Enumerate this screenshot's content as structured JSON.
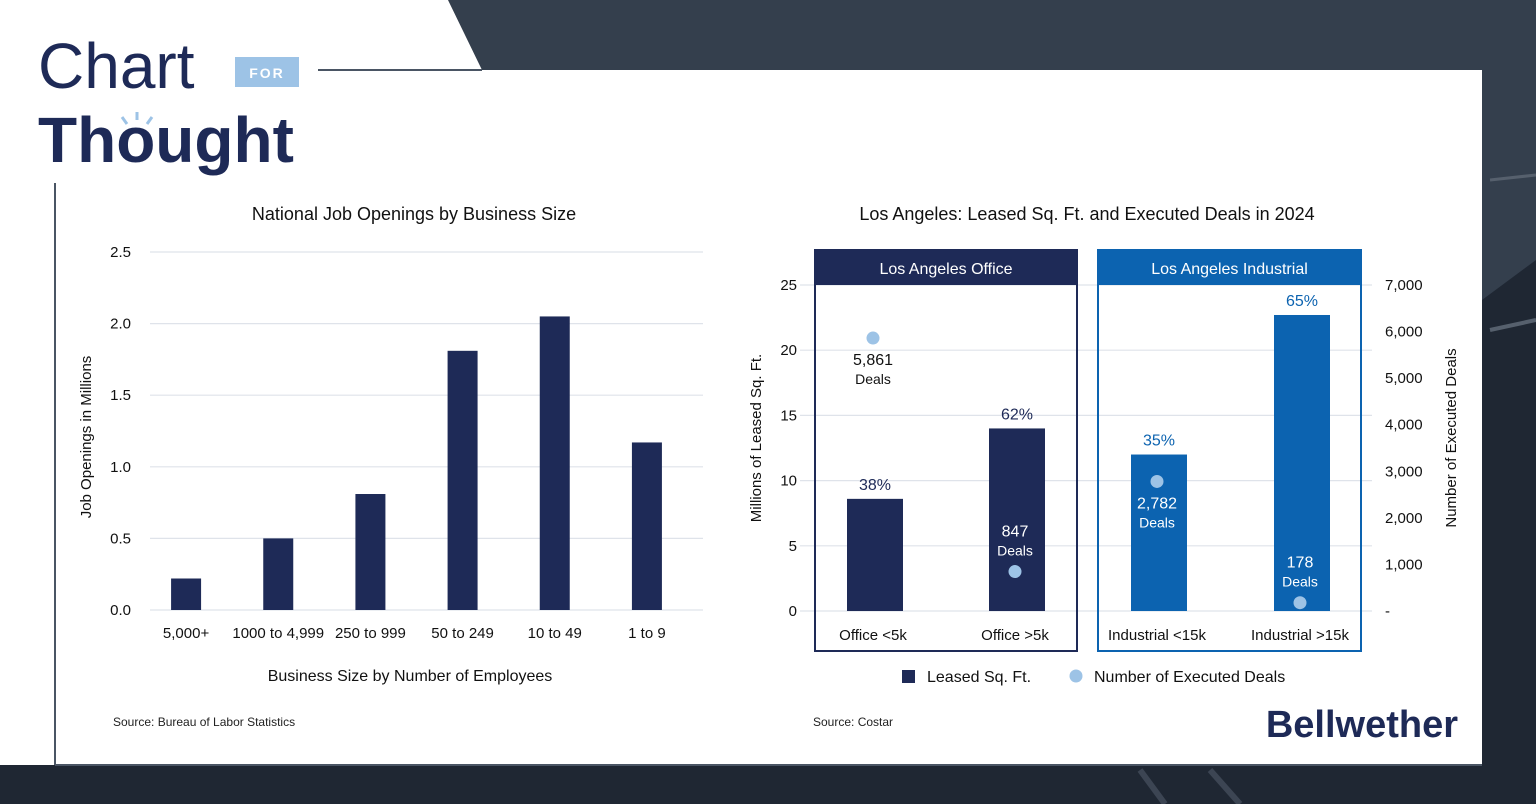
{
  "logo": {
    "word1": "Chart",
    "badge": "FOR",
    "word2": "Thought"
  },
  "brand": "Bellwether",
  "colors": {
    "navy": "#1e2a57",
    "blue": "#0c63b0",
    "dot": "#9dc3e6",
    "grid": "#dfe3ea",
    "badge": "#9dc3e6",
    "background": "#1f2733"
  },
  "chart_data": [
    {
      "type": "bar",
      "title": "National Job Openings by Business Size",
      "xlabel": "Business Size by Number of Employees",
      "ylabel": "Job Openings in Millions",
      "categories": [
        "5,000+",
        "1000 to 4,999",
        "250 to 999",
        "50 to 249",
        "10 to 49",
        "1 to 9"
      ],
      "values": [
        0.22,
        0.5,
        0.81,
        1.81,
        2.05,
        1.17
      ],
      "ylim": [
        0,
        2.5
      ],
      "yticks": [
        "0.0",
        "0.5",
        "1.0",
        "1.5",
        "2.0",
        "2.5"
      ],
      "grid": true,
      "source": "Source: Bureau of Labor Statistics"
    },
    {
      "type": "bar",
      "title": "Los Angeles: Leased Sq. Ft. and Executed Deals in 2024",
      "ylabel": "Millions of Leased Sq. Ft.",
      "y2label": "Number of Executed Deals",
      "ylim": [
        0,
        25
      ],
      "y2lim": [
        0,
        7000
      ],
      "yticks": [
        "0",
        "5",
        "10",
        "15",
        "20",
        "25"
      ],
      "y2ticks": [
        "-",
        "1,000",
        "2,000",
        "3,000",
        "4,000",
        "5,000",
        "6,000",
        "7,000"
      ],
      "grid": true,
      "groups": [
        {
          "label": "Los Angeles Office",
          "color": "#1e2a57"
        },
        {
          "label": "Los Angeles Industrial",
          "color": "#0c63b0"
        }
      ],
      "categories": [
        "Office <5k",
        "Office >5k",
        "Industrial <15k",
        "Industrial >15k"
      ],
      "series": [
        {
          "name": "Leased Sq. Ft.",
          "type": "bar",
          "values": [
            8.6,
            14.0,
            12.0,
            22.7
          ],
          "labels": [
            "38%",
            "62%",
            "35%",
            "65%"
          ]
        },
        {
          "name": "Number of Executed Deals",
          "type": "scatter",
          "axis": "right",
          "values": [
            5861,
            847,
            2782,
            178
          ],
          "labels": [
            "5,861",
            "847",
            "2,782",
            "178"
          ],
          "unit_label": "Deals"
        }
      ],
      "legend": "bottom",
      "source": "Source: Costar"
    }
  ]
}
